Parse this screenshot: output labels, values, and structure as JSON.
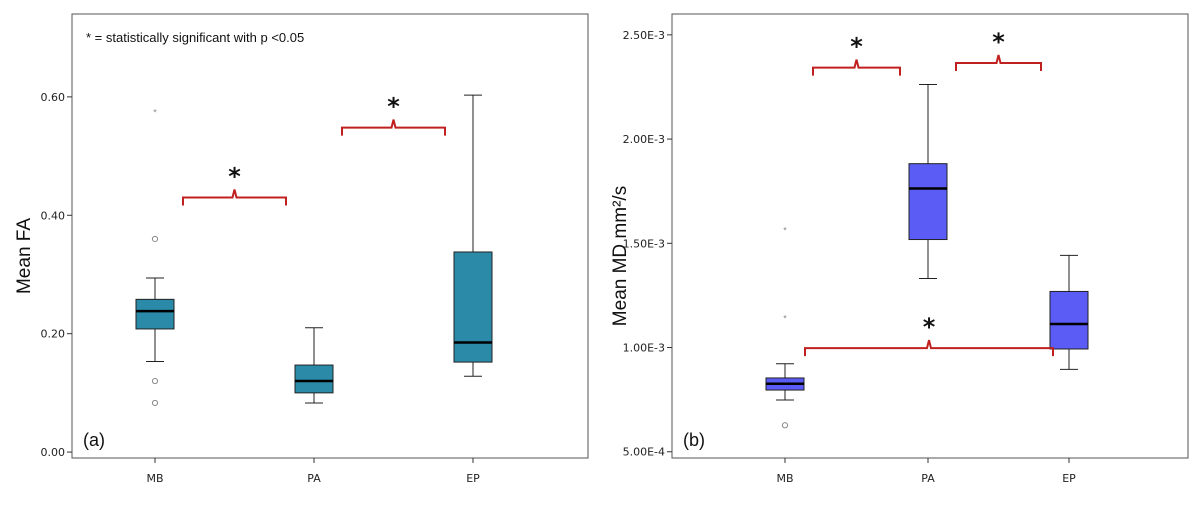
{
  "chart_data": [
    {
      "type": "boxplot",
      "panel_label": "(a)",
      "ylabel": "Mean FA",
      "ylim": [
        -0.01,
        0.74
      ],
      "yticks": [
        0.0,
        0.2,
        0.4,
        0.6
      ],
      "ytick_labels": [
        "0.00",
        "0.20",
        "0.40",
        "0.60"
      ],
      "categories": [
        "MB",
        "PA",
        "EP"
      ],
      "box_color": "#2a8aa8",
      "note": "* = statistically significant with p <0.05",
      "boxes": [
        {
          "category": "MB",
          "whisker_low": 0.153,
          "q1": 0.208,
          "median": 0.238,
          "q3": 0.258,
          "whisker_high": 0.294,
          "outliers": [
            0.36,
            0.12,
            0.083
          ],
          "extremes": [
            0.575
          ]
        },
        {
          "category": "PA",
          "whisker_low": 0.083,
          "q1": 0.1,
          "median": 0.12,
          "q3": 0.147,
          "whisker_high": 0.21,
          "outliers": [],
          "extremes": []
        },
        {
          "category": "EP",
          "whisker_low": 0.128,
          "q1": 0.152,
          "median": 0.185,
          "q3": 0.338,
          "whisker_high": 0.603,
          "outliers": [],
          "extremes": []
        }
      ],
      "significance": [
        {
          "from": "MB",
          "to": "PA",
          "level": 0.43,
          "label": "*"
        },
        {
          "from": "PA",
          "to": "EP",
          "level": 0.548,
          "label": "*"
        }
      ]
    },
    {
      "type": "boxplot",
      "panel_label": "(b)",
      "ylabel": "Mean MD mm²/s",
      "ylim": [
        0.00047,
        0.0026
      ],
      "yticks": [
        0.0005,
        0.001,
        0.0015,
        0.002,
        0.0025
      ],
      "ytick_labels": [
        "5.00E-4",
        "1.00E-3",
        "1.50E-3",
        "2.00E-3",
        "2.50E-3"
      ],
      "categories": [
        "MB",
        "PA",
        "EP"
      ],
      "box_color": "#5b5cf6",
      "boxes": [
        {
          "category": "MB",
          "whisker_low": 0.000748,
          "q1": 0.000796,
          "median": 0.000826,
          "q3": 0.000854,
          "whisker_high": 0.000922,
          "outliers": [
            0.000627
          ],
          "extremes": [
            0.001567,
            0.001145
          ]
        },
        {
          "category": "PA",
          "whisker_low": 0.001331,
          "q1": 0.001518,
          "median": 0.001763,
          "q3": 0.001882,
          "whisker_high": 0.002262,
          "outliers": [],
          "extremes": []
        },
        {
          "category": "EP",
          "whisker_low": 0.000895,
          "q1": 0.000993,
          "median": 0.001113,
          "q3": 0.001269,
          "whisker_high": 0.001442,
          "outliers": [],
          "extremes": []
        }
      ],
      "significance": [
        {
          "from": "MB",
          "to": "PA",
          "level": 0.002343,
          "label": "*"
        },
        {
          "from": "PA",
          "to": "EP",
          "level": 0.002365,
          "label": "*"
        },
        {
          "from": "MB",
          "to": "EP",
          "level": 0.000997,
          "label": "*"
        }
      ]
    }
  ]
}
